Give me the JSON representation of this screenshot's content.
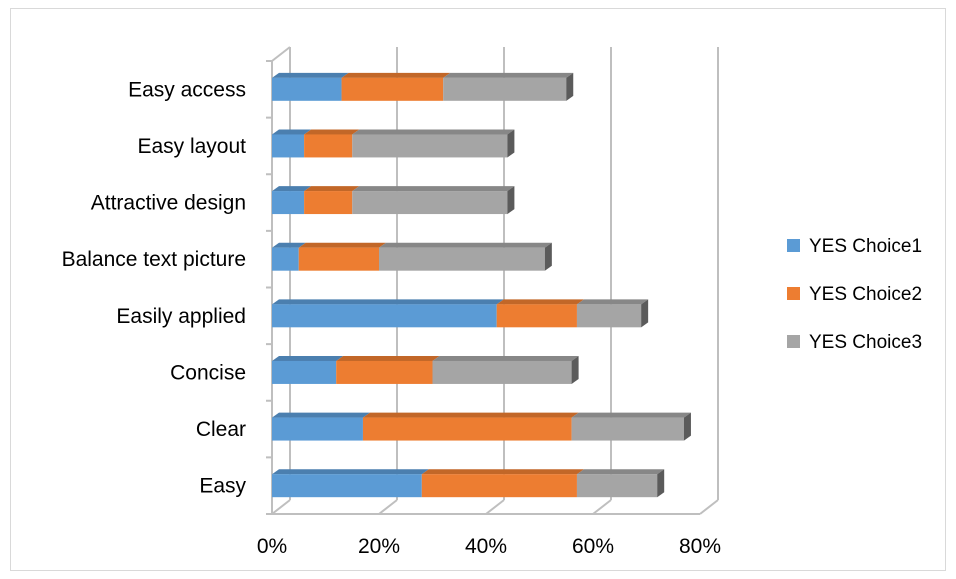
{
  "chart_data": {
    "type": "bar",
    "orientation": "horizontal",
    "stacked": true,
    "style": "3d",
    "categories": [
      "Easy",
      "Clear",
      "Concise",
      "Easily applied",
      "Balance text picture",
      "Attractive design",
      "Easy layout",
      "Easy access"
    ],
    "series": [
      {
        "name": "YES Choice1",
        "color": "#5B9BD5",
        "values": [
          28,
          17,
          12,
          42,
          5,
          6,
          6,
          13
        ]
      },
      {
        "name": "YES Choice2",
        "color": "#ED7D31",
        "values": [
          29,
          39,
          18,
          15,
          15,
          9,
          9,
          19
        ]
      },
      {
        "name": "YES Choice3",
        "color": "#A5A5A5",
        "values": [
          15,
          21,
          26,
          12,
          31,
          29,
          29,
          23
        ]
      }
    ],
    "xlim": [
      0,
      80
    ],
    "xticks": [
      "0%",
      "20%",
      "40%",
      "60%",
      "80%"
    ],
    "grid": true,
    "legend_position": "right",
    "title": "",
    "xlabel": "",
    "ylabel": ""
  }
}
